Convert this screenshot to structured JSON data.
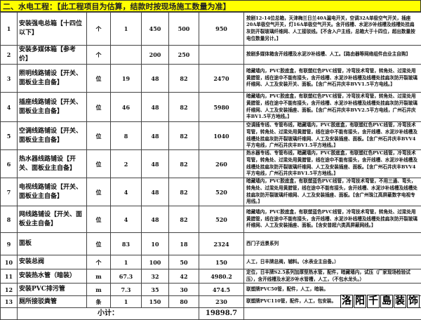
{
  "title": "二、水电工程：【此工程项目为估算，结款时按现场施工数量为准】",
  "rows": [
    {
      "no": "1",
      "name": "安装强电总箱【十四位以下】",
      "unit": "个",
      "qty": "1",
      "material": "450",
      "labor": "500",
      "total": "950",
      "desc": "按剧12-14位总箱，天津梅兰日兰40A漏电开关，空调32A单极空气开关，插座20A单极空气开关，灯16A单极空气开关。含开线槽、水泥沙补线槽及线槽处挂扁灰防开裂玻璃纤维网、人工接驳线。【不含入户主线，总箱大于十四位，超出数量按电位数量另计。】"
    },
    {
      "no": "2",
      "name": "安装多媒体箱【参考价】",
      "unit": "个",
      "qty": "",
      "material": "200",
      "labor": "250",
      "total": "",
      "desc": "按剧多媒体箱含开线槽及水泥沙补线槽、人工。【路由器等网络组件由业主自购】"
    },
    {
      "no": "3",
      "name": "照明线路铺设【开关、面板业主自备】",
      "unit": "位",
      "qty": "19",
      "material": "48",
      "labor": "82",
      "total": "2470",
      "desc": "暗藏墙内，PVC胶底盒，有联塑红色PVC线管，冷弯技术弯管，转角处、过梁处用黄腊管，线在途中不能有接头，含开线槽、水泥沙补线槽及线槽处挂扁灰防开裂玻璃纤维网、人工及安装开关、面板。【含广州石井庆丰BVV1.5平方电线。】"
    },
    {
      "no": "4",
      "name": "插座线路铺设【开关、面板业主自备】",
      "unit": "位",
      "qty": "46",
      "material": "48",
      "labor": "82",
      "total": "5980",
      "desc": "暗藏墙内，PVC胶底盒，有联塑红色PVC线管，冷弯技术弯管，转角处、过梁处用黄腊管，线在途中不能有接头，含开线槽、水泥沙补线槽及线槽处挂扁灰防开裂玻璃纤维网、人工及安装插座、面板。【含广州石井庆丰BVV2.5平方电线，广州石井庆丰BV1.5平方地线。】"
    },
    {
      "no": "5",
      "name": "空调线路铺设【开关、面板业主自备】",
      "unit": "位",
      "qty": "8",
      "material": "48",
      "labor": "82",
      "total": "1040",
      "desc": "空调插专线、专管布线，暗藏墙内，PVC胶底盒，有联塑红色PVC线管，冷弯技术弯管，转角处、过梁处用黄腊管，线在途中不能有接头，含开线槽、水泥沙补线槽及线槽处挂扁灰防开裂玻璃纤维网、人工及安装插座、面板。【含广州石井庆丰BVV4平方电线，广州石井庆丰BV1.5平方地线。】"
    },
    {
      "no": "6",
      "name": "热水器线路铺设【开关、面板业主自备】",
      "unit": "位",
      "qty": "2",
      "material": "48",
      "labor": "82",
      "total": "260",
      "desc": "热水器专线、专管布线，暗藏墙内，PVC胶底盒，有联塑红色PVC线管，冷弯技术弯管，转角处、过梁处用黄腊管，线在途中不能有接头，含开线槽、水泥沙补线槽及线槽处挂扁灰防开裂玻璃纤维网、人工及安装插座、面板。【含广州石井庆丰BVV4平方电线，广州石井庆丰BV1.5平方地线。】"
    },
    {
      "no": "7",
      "name": "电视线路铺设【开关、面板业主自备】",
      "unit": "位",
      "qty": "4",
      "material": "48",
      "labor": "82",
      "total": "520",
      "desc": "暗藏墙内，PVC胶底盒，有联塑蓝色PVC线管，冷弯技术弯管，不用三通、弯头，转角处、过梁处用黄腊管，线在途中不能有接头，含开线槽、水泥沙补线槽及线槽处挂扁灰防开裂玻璃纤维网、人工及安装插座、面板。【含广州珠江高屏蔽数字电视专用线。】"
    },
    {
      "no": "8",
      "name": "网线路铺设【开关、面板业主自备】",
      "unit": "位",
      "qty": "4",
      "material": "48",
      "labor": "82",
      "total": "520",
      "desc": "暗藏墙内，PVC胶底盒，有联塑蓝色PVC线管，冷弯技术弯管，转角处、过梁处用黄腊管，线在途中不能有接头，含开线槽、水泥沙补线槽及线槽处挂扁灰防开裂玻璃纤维网、人工及安装插座、面板。【含安普超六类高屏蔽网线。】"
    },
    {
      "no": "9",
      "name": "面板",
      "unit": "位",
      "qty": "83",
      "material": "10",
      "labor": "18",
      "total": "2324",
      "desc": "西门子远景系列"
    },
    {
      "no": "10",
      "name": "安装总阀",
      "unit": "个",
      "qty": "1",
      "material": "100",
      "labor": "50",
      "total": "150",
      "desc": "人工，日丰牌总阀，辅料。（水表业主自备。）"
    },
    {
      "no": "11",
      "name": "安装热水管（暗装）",
      "unit": "m",
      "qty": "67.3",
      "material": "32",
      "labor": "42",
      "total": "4980.2",
      "desc": "定位，日丰牌S2.5系列加厚型热水管，配件，暗藏墙内，试压（厂家现场检验试压），含开线槽及水泥沙补水管槽，人工，（不包水龙头。）"
    },
    {
      "no": "12",
      "name": "安装PVC排污管",
      "unit": "m",
      "qty": "7.3",
      "material": "35",
      "labor": "30",
      "total": "474.5",
      "desc": "联塑牌PVC50管，配件，人工，暗装。"
    },
    {
      "no": "13",
      "name": "厕所接驳粪管",
      "unit": "条",
      "qty": "1",
      "material": "150",
      "labor": "80",
      "total": "230",
      "desc": "联塑牌PVC110管，配件，人工，包安装。"
    }
  ],
  "subtotal": {
    "label": "小计：",
    "value": "19898.7"
  },
  "logo": [
    "洛",
    "阳",
    "千",
    "島",
    "装",
    "饰"
  ]
}
